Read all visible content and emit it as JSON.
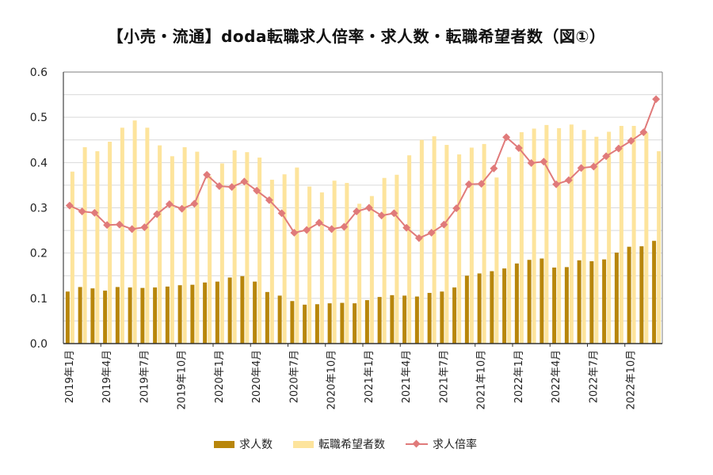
{
  "title": "【小売・流通】doda転職求人倍率・求人数・転職希望者数（図①）",
  "legend": {
    "job_openings": "求人数",
    "job_seekers": "転職希望者数",
    "ratio": "求人倍率"
  },
  "colors": {
    "job_openings": "#b8860b",
    "job_seekers": "#fde49c",
    "ratio": "#e07a7a",
    "grid": "#d9d9d9",
    "axis": "#7f7f7f"
  },
  "y_ticks": [
    "0.0",
    "0.1",
    "0.2",
    "0.3",
    "0.4",
    "0.5",
    "0.6"
  ],
  "x_tick_labels": [
    "2019年1月",
    "2019年4月",
    "2019年7月",
    "2019年10月",
    "2020年1月",
    "2020年4月",
    "2020年7月",
    "2020年10月",
    "2021年1月",
    "2021年4月",
    "2021年7月",
    "2021年10月",
    "2022年1月",
    "2022年4月",
    "2022年7月",
    "2022年10月"
  ],
  "chart_data": {
    "type": "bar+line",
    "title": "【小売・流通】doda転職求人倍率・求人数・転職希望者数（図①）",
    "xlabel": "",
    "ylabel": "",
    "ylim": [
      0,
      0.6
    ],
    "y_tick_step": 0.1,
    "grid": true,
    "minor_grid_step": 0.05,
    "legend_position": "bottom",
    "categories": [
      "2019年1月",
      "2019年2月",
      "2019年3月",
      "2019年4月",
      "2019年5月",
      "2019年6月",
      "2019年7月",
      "2019年8月",
      "2019年9月",
      "2019年10月",
      "2019年11月",
      "2019年12月",
      "2020年1月",
      "2020年2月",
      "2020年3月",
      "2020年4月",
      "2020年5月",
      "2020年6月",
      "2020年7月",
      "2020年8月",
      "2020年9月",
      "2020年10月",
      "2020年11月",
      "2020年12月",
      "2021年1月",
      "2021年2月",
      "2021年3月",
      "2021年4月",
      "2021年5月",
      "2021年6月",
      "2021年7月",
      "2021年8月",
      "2021年9月",
      "2021年10月",
      "2021年11月",
      "2021年12月",
      "2022年1月",
      "2022年2月",
      "2022年3月",
      "2022年4月",
      "2022年5月",
      "2022年6月",
      "2022年7月",
      "2022年8月",
      "2022年9月",
      "2022年10月",
      "2022年11月",
      "2022年12月"
    ],
    "series": [
      {
        "name": "求人数",
        "type": "bar",
        "color": "#b8860b",
        "values": [
          0.115,
          0.125,
          0.122,
          0.117,
          0.125,
          0.124,
          0.123,
          0.124,
          0.126,
          0.129,
          0.13,
          0.135,
          0.137,
          0.146,
          0.149,
          0.137,
          0.114,
          0.106,
          0.094,
          0.086,
          0.087,
          0.089,
          0.09,
          0.089,
          0.096,
          0.103,
          0.107,
          0.106,
          0.104,
          0.112,
          0.115,
          0.124,
          0.15,
          0.155,
          0.16,
          0.166,
          0.177,
          0.185,
          0.188,
          0.168,
          0.169,
          0.184,
          0.182,
          0.186,
          0.201,
          0.214,
          0.215,
          0.227
        ]
      },
      {
        "name": "転職希望者数",
        "type": "bar",
        "color": "#fde49c",
        "values": [
          0.38,
          0.434,
          0.425,
          0.446,
          0.477,
          0.493,
          0.477,
          0.438,
          0.414,
          0.434,
          0.424,
          0.37,
          0.398,
          0.427,
          0.423,
          0.411,
          0.362,
          0.374,
          0.389,
          0.347,
          0.334,
          0.36,
          0.355,
          0.309,
          0.326,
          0.366,
          0.373,
          0.416,
          0.45,
          0.458,
          0.439,
          0.418,
          0.433,
          0.441,
          0.367,
          0.412,
          0.467,
          0.475,
          0.483,
          0.476,
          0.484,
          0.472,
          0.457,
          0.468,
          0.481,
          0.481,
          0.466,
          0.425
        ]
      },
      {
        "name": "求人倍率",
        "type": "line",
        "color": "#e07a7a",
        "values": [
          0.305,
          0.292,
          0.289,
          0.262,
          0.263,
          0.253,
          0.257,
          0.286,
          0.308,
          0.298,
          0.309,
          0.373,
          0.348,
          0.346,
          0.358,
          0.338,
          0.317,
          0.288,
          0.245,
          0.251,
          0.267,
          0.253,
          0.258,
          0.292,
          0.3,
          0.283,
          0.288,
          0.256,
          0.233,
          0.245,
          0.263,
          0.299,
          0.352,
          0.353,
          0.387,
          0.456,
          0.432,
          0.399,
          0.402,
          0.352,
          0.361,
          0.388,
          0.391,
          0.414,
          0.431,
          0.448,
          0.467,
          0.54
        ]
      }
    ]
  }
}
